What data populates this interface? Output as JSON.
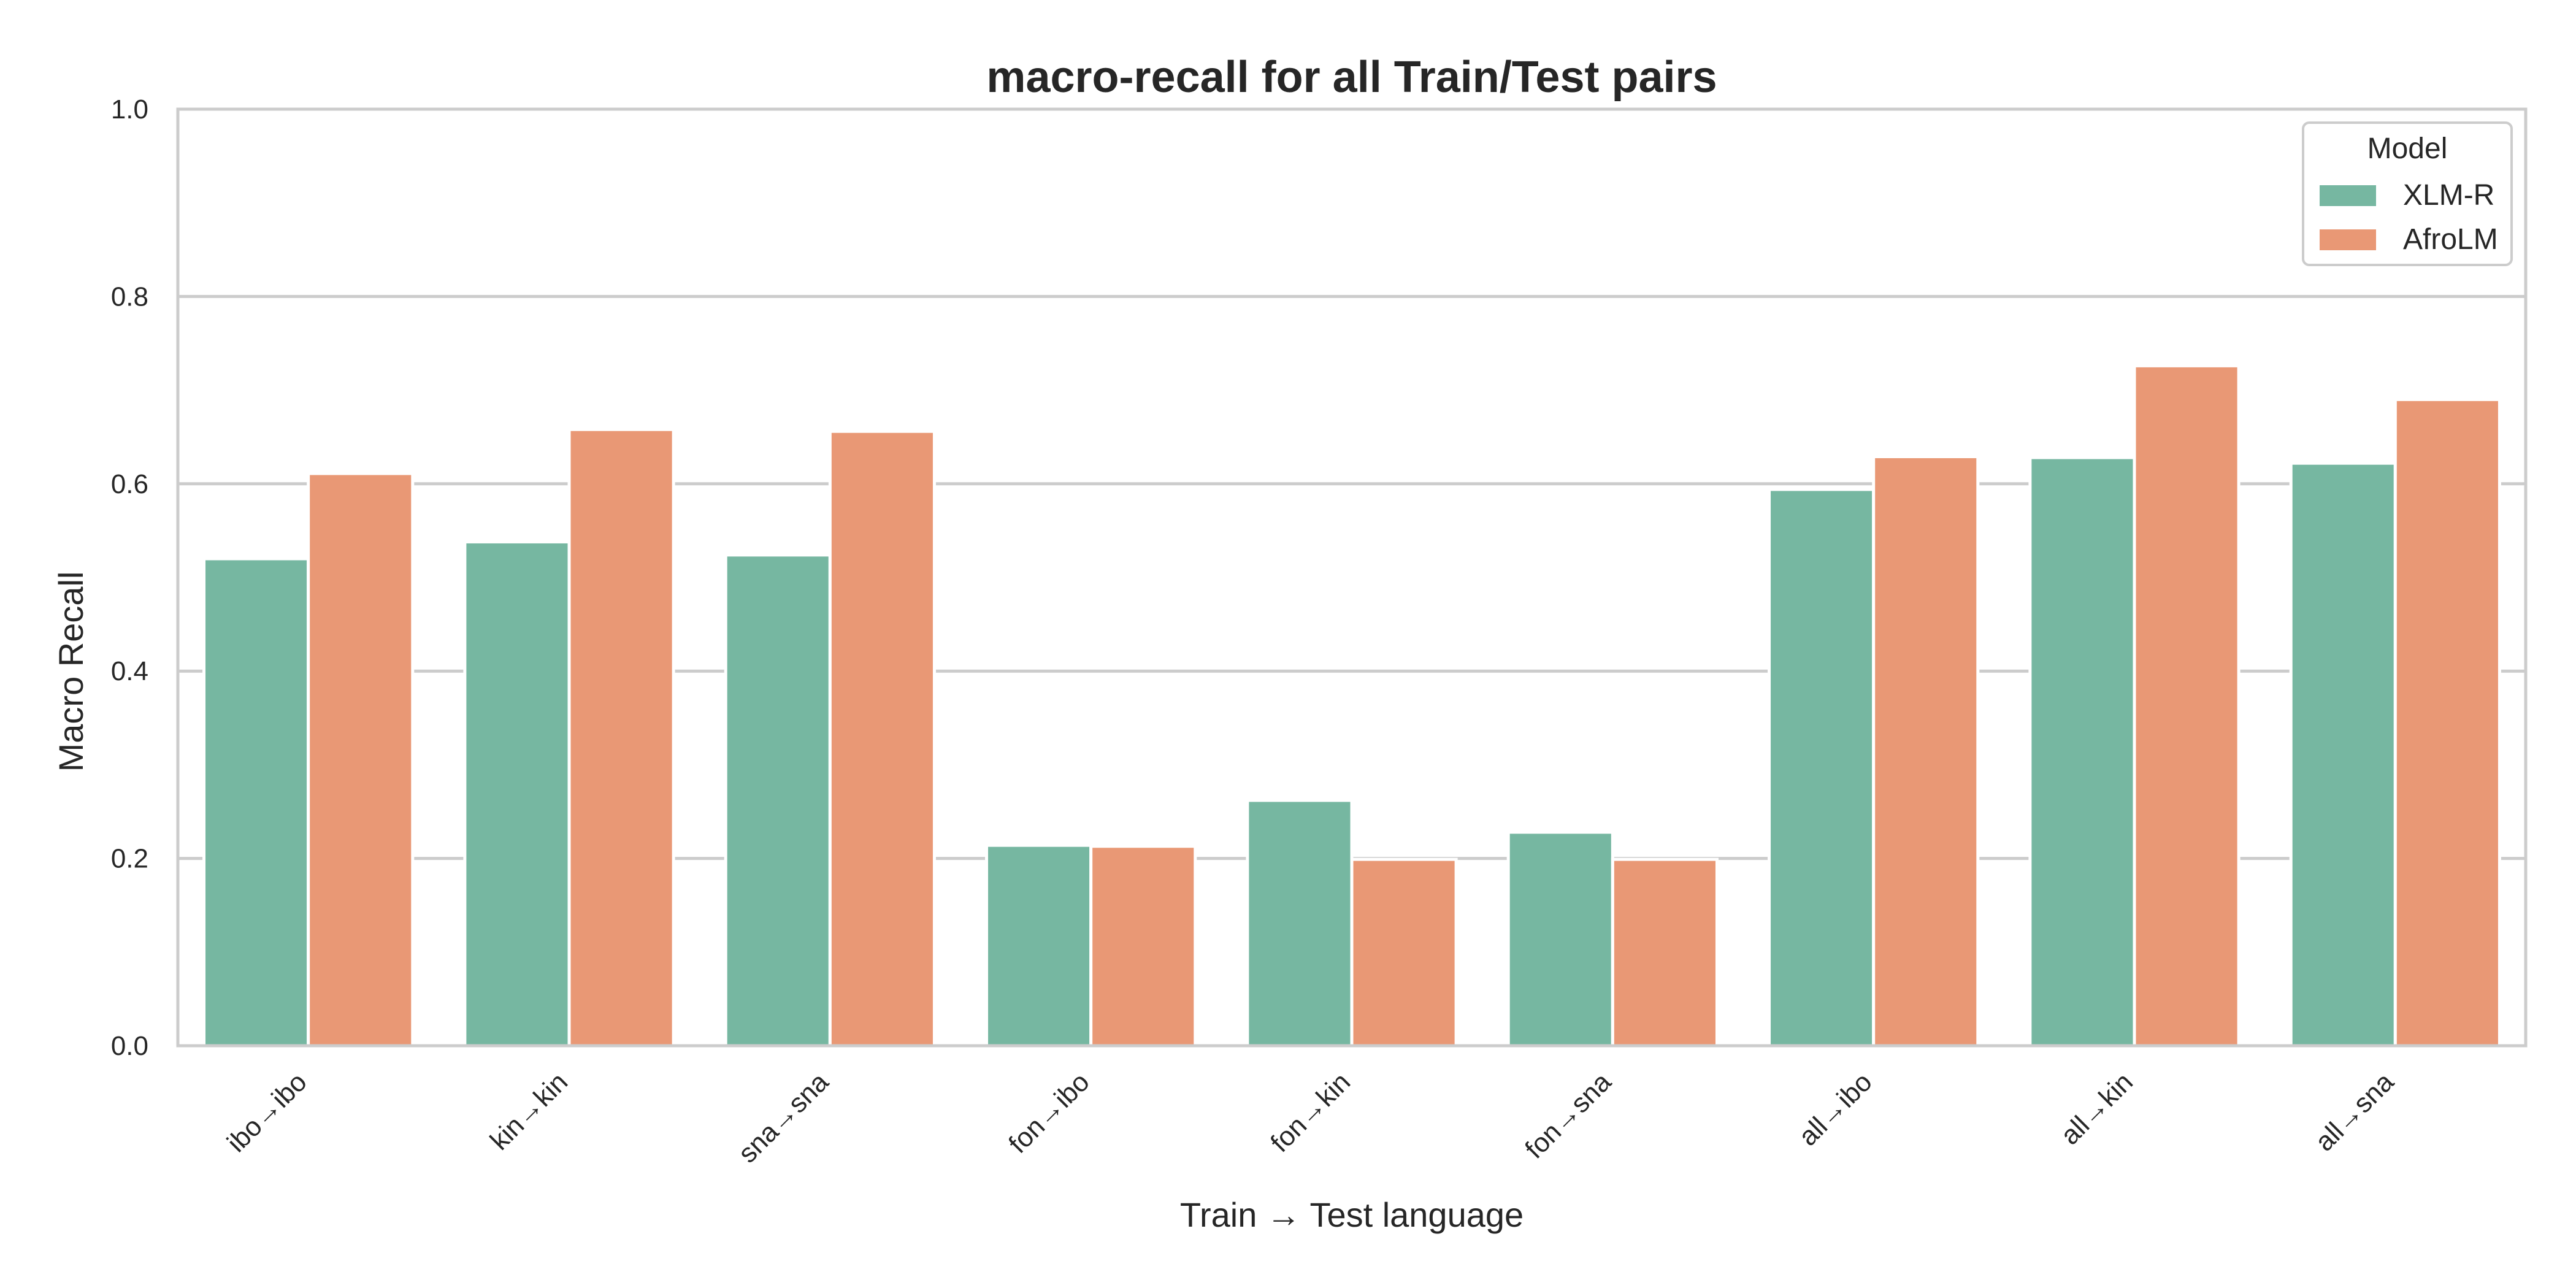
{
  "chart_data": {
    "type": "bar",
    "title": "macro-recall for all Train/Test pairs",
    "xlabel": "Train → Test language",
    "ylabel": "Macro Recall",
    "ylim": [
      0,
      1.0
    ],
    "yticks": [
      "0.0",
      "0.2",
      "0.4",
      "0.6",
      "0.8",
      "1.0"
    ],
    "grid": "horizontal",
    "categories": [
      "ibo→ibo",
      "kin→kin",
      "sna→sna",
      "fon→ibo",
      "fon→kin",
      "fon→sna",
      "all→ibo",
      "all→kin",
      "all→sna"
    ],
    "series": [
      {
        "name": "XLM-R",
        "color": "#76b7a1",
        "values": [
          0.52,
          0.538,
          0.524,
          0.214,
          0.262,
          0.228,
          0.594,
          0.628,
          0.622
        ]
      },
      {
        "name": "AfroLM",
        "color": "#e99875",
        "values": [
          0.611,
          0.658,
          0.656,
          0.213,
          0.199,
          0.199,
          0.629,
          0.726,
          0.69
        ]
      }
    ],
    "legend": {
      "title": "Model",
      "placement": "top-right"
    }
  }
}
